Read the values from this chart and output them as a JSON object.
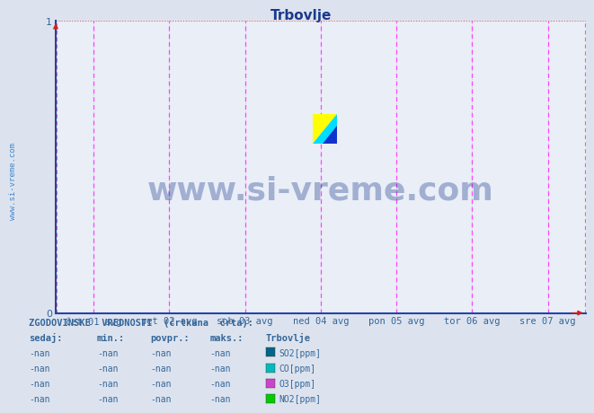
{
  "title": "Trbovlje",
  "title_color": "#1a3a8c",
  "bg_color": "#dde3ee",
  "plot_bg_color": "#eaeef7",
  "xlim": [
    0,
    1
  ],
  "ylim": [
    0,
    1
  ],
  "xtick_labels": [
    "čet 01 avg",
    "pet 02 avg",
    "sob 03 avg",
    "ned 04 avg",
    "pon 05 avg",
    "tor 06 avg",
    "sre 07 avg"
  ],
  "xtick_positions": [
    0.0714,
    0.2143,
    0.3571,
    0.5,
    0.6429,
    0.7857,
    0.9286
  ],
  "ytick_labels": [
    "0",
    "1"
  ],
  "ytick_positions": [
    0,
    1
  ],
  "grid_color": "#bbbbbb",
  "vline_magenta": "#ff44ff",
  "vline_red": "#ff6666",
  "axis_color": "#2244aa",
  "arrow_color": "#cc2222",
  "watermark_text": "www.si-vreme.com",
  "watermark_color": "#1a3a8c",
  "sidebar_text": "www.si-vreme.com",
  "sidebar_color": "#4488cc",
  "text_color": "#336699",
  "legend_header": "ZGODOVINSKE  VREDNOSTI  (črtkana  črta):",
  "legend_col_headers": [
    "sedaj:",
    "min.:",
    "povpr.:",
    "maks.:",
    "Trbovlje"
  ],
  "legend_rows": [
    [
      "-nan",
      "-nan",
      "-nan",
      "-nan",
      "SO2[ppm]",
      "#006688"
    ],
    [
      "-nan",
      "-nan",
      "-nan",
      "-nan",
      "CO[ppm]",
      "#00bbbb"
    ],
    [
      "-nan",
      "-nan",
      "-nan",
      "-nan",
      "O3[ppm]",
      "#cc44cc"
    ],
    [
      "-nan",
      "-nan",
      "-nan",
      "-nan",
      "NO2[ppm]",
      "#00cc00"
    ]
  ],
  "logo_colors": {
    "yellow": "#ffff00",
    "cyan": "#00ddff",
    "blue": "#1133cc"
  }
}
